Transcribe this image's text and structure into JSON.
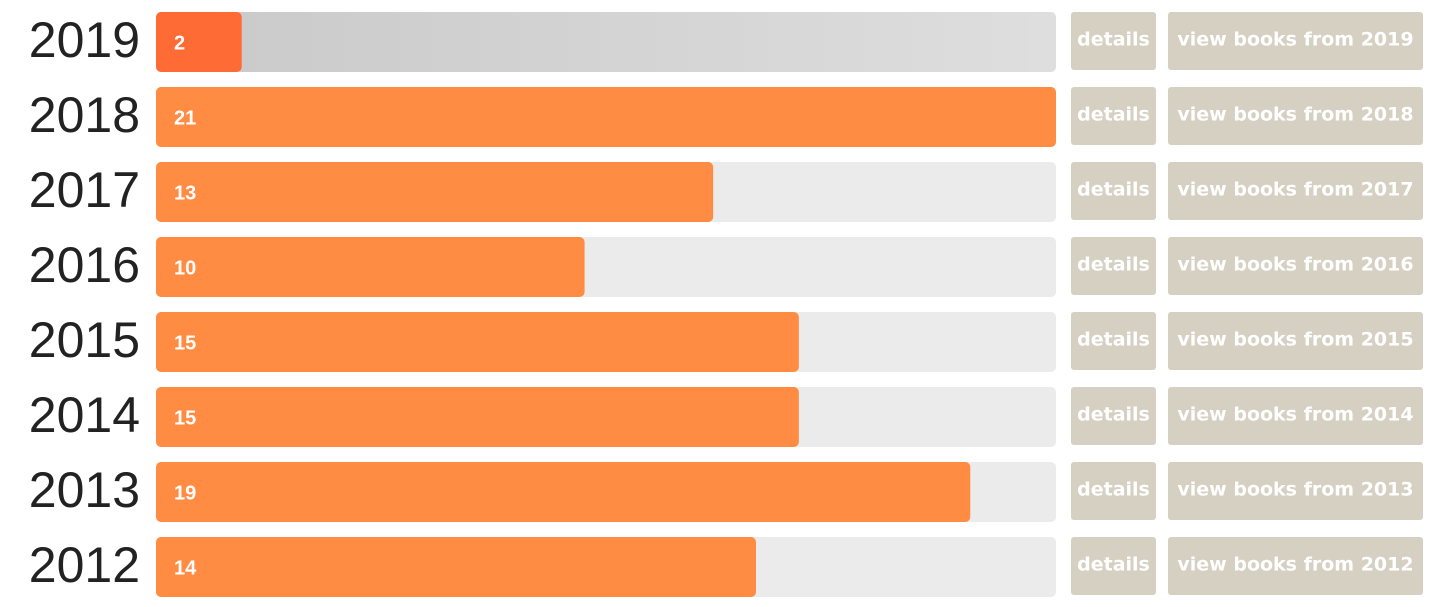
{
  "chart_data": {
    "type": "bar",
    "orientation": "horizontal",
    "categories": [
      "2019",
      "2018",
      "2017",
      "2016",
      "2015",
      "2014",
      "2013",
      "2012"
    ],
    "values": [
      2,
      21,
      13,
      10,
      15,
      15,
      19,
      14
    ],
    "colors": [
      "#ff6b35",
      "#ff8c42",
      "#ff8c42",
      "#ff8c42",
      "#ff8c42",
      "#ff8c42",
      "#ff8c42",
      "#ff8c42"
    ],
    "track_color": "#ebebeb",
    "xlim": [
      0,
      21
    ],
    "detail_buttons": [
      "details",
      "details",
      "details",
      "details",
      "details",
      "details",
      "details",
      "details"
    ],
    "view_buttons": [
      "view books from 2019",
      "view books from 2018",
      "view books from 2017",
      "view books from 2016",
      "view books from 2015",
      "view books from 2014",
      "view books from 2013",
      "view books from 2012"
    ],
    "button_color": "#d6d0c2"
  }
}
